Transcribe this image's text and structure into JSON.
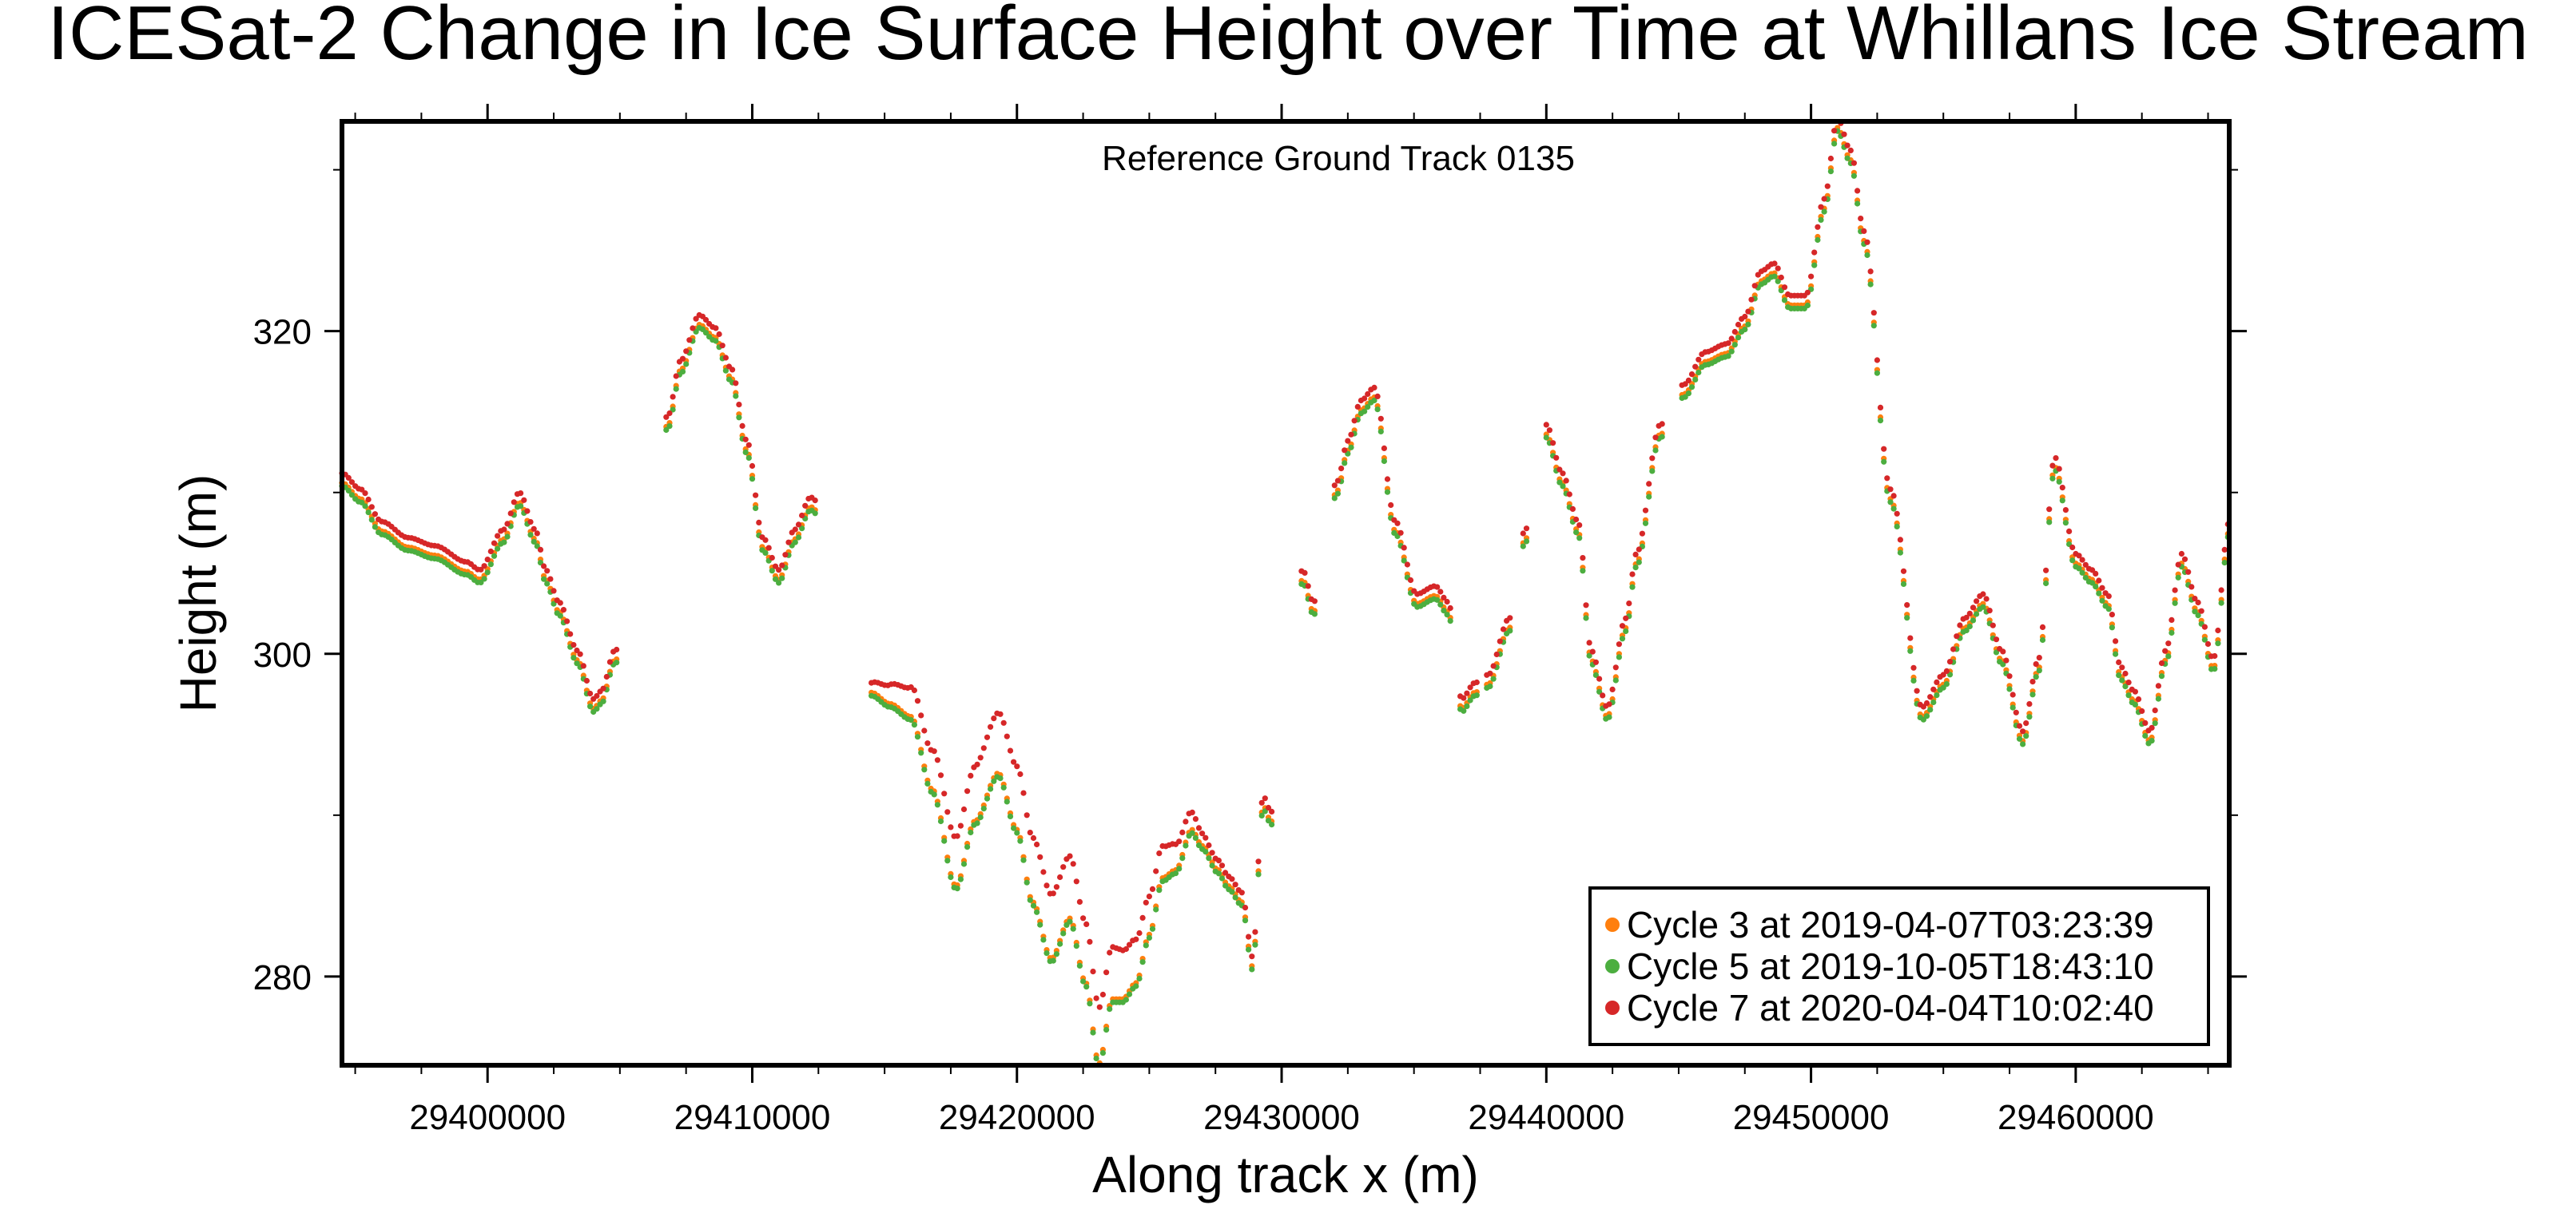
{
  "chart_data": {
    "type": "scatter",
    "title": "ICESat-2 Change in Ice Surface Height over Time at Whillans Ice Stream",
    "annotation": "Reference Ground Track 0135",
    "xlabel": "Along track x (m)",
    "ylabel": "Height (m)",
    "xlim": [
      29394500,
      29465800
    ],
    "ylim": [
      274.5,
      333
    ],
    "xticks": [
      29400000,
      29410000,
      29420000,
      29430000,
      29440000,
      29450000,
      29460000
    ],
    "xtick_labels": [
      "29400000",
      "29410000",
      "29420000",
      "29430000",
      "29440000",
      "29450000",
      "29460000"
    ],
    "yticks": [
      280,
      300,
      320
    ],
    "ytick_labels": [
      "280",
      "300",
      "320"
    ],
    "grid": false,
    "legend_position": "bottom-right",
    "profile": {
      "x": [
        29394500,
        29395200,
        29396000,
        29397000,
        29398000,
        29399200,
        29399700,
        29400600,
        29401200,
        29401800,
        29402200,
        29402700,
        29403400,
        29404000,
        29404300,
        29404800,
        29406800,
        29407300,
        29408000,
        29408600,
        29409200,
        29409800,
        29410400,
        29411000,
        29411600,
        29412200,
        29414500,
        29415200,
        29416000,
        29416800,
        29417700,
        29418400,
        29419300,
        29420000,
        29420600,
        29421300,
        29422000,
        29422600,
        29423100,
        29423600,
        29424000,
        29424500,
        29425000,
        29425500,
        29426000,
        29426600,
        29427000,
        29427600,
        29428000,
        29428500,
        29428900,
        29429300,
        29429600,
        29430800,
        29431200,
        29432100,
        29432500,
        29433000,
        29433500,
        29434300,
        29435100,
        29435800,
        29436300,
        29436800,
        29437300,
        29437800,
        29438600,
        29439200,
        29440000,
        29440600,
        29441200,
        29441700,
        29442300,
        29443000,
        29443400,
        29444300,
        29445200,
        29446000,
        29446800,
        29447500,
        29448100,
        29448600,
        29449200,
        29449800,
        29450500,
        29451000,
        29451500,
        29452000,
        29453000,
        29454200,
        29455000,
        29455800,
        29456500,
        29457200,
        29458000,
        29458600,
        29459200,
        29460000,
        29460600,
        29461200,
        29461700,
        29462200,
        29462800,
        29463400,
        29464000,
        29464600,
        29465200,
        29465800
      ],
      "y": [
        311,
        310,
        308,
        307,
        306.5,
        305.5,
        305,
        307.5,
        309.8,
        307.5,
        305,
        303,
        300,
        297,
        297.5,
        300,
        314.5,
        318,
        320.8,
        320,
        317.5,
        313,
        307,
        305,
        307.5,
        309.5,
        298,
        297.3,
        296.5,
        292,
        286,
        290,
        293,
        289.5,
        285,
        281.5,
        284,
        280,
        275,
        279,
        279,
        280,
        283,
        286.5,
        287,
        289.5,
        288.5,
        287,
        286,
        285,
        281,
        291,
        290,
        305,
        303,
        310.5,
        313,
        315.5,
        316.3,
        308,
        303.5,
        304,
        303,
        297,
        298,
        298.5,
        302,
        307.5,
        314,
        311,
        308,
        300,
        296.5,
        302,
        306,
        314,
        316.5,
        318.5,
        319,
        320.7,
        323.5,
        324,
        322,
        322,
        328,
        333,
        331,
        326,
        310,
        296.5,
        298.5,
        302,
        303.5,
        300,
        295,
        299.5,
        312,
        306,
        305,
        303.5,
        299,
        297.5,
        295,
        300,
        306,
        303,
        299.5,
        308
      ]
    },
    "series": [
      {
        "name": "Cycle 3 at 2019-04-07T03:23:39",
        "color": "#ff7f0e",
        "offset_y": -0.4,
        "dip_y": 0,
        "dip_range_x": [
          29414500,
          29427200
        ]
      },
      {
        "name": "Cycle 5 at 2019-10-05T18:43:10",
        "color": "#4cae3f",
        "offset_y": -0.6,
        "dip_y": 0,
        "dip_range_x": [
          29414500,
          29427200
        ]
      },
      {
        "name": "Cycle 7 at 2020-04-04T10:02:40",
        "color": "#d62728",
        "offset_y": 0.2,
        "dip_y": 3.4,
        "dip_range_x": [
          29414500,
          29427200
        ]
      }
    ],
    "gaps_x": [
      [
        29404900,
        29406700
      ],
      [
        29412400,
        29414400
      ],
      [
        29429700,
        29430700
      ],
      [
        29431300,
        29432000
      ],
      [
        29436400,
        29436700
      ],
      [
        29437400,
        29437700
      ],
      [
        29438700,
        29439100
      ],
      [
        29439300,
        29439900
      ],
      [
        29444400,
        29445100
      ]
    ]
  }
}
